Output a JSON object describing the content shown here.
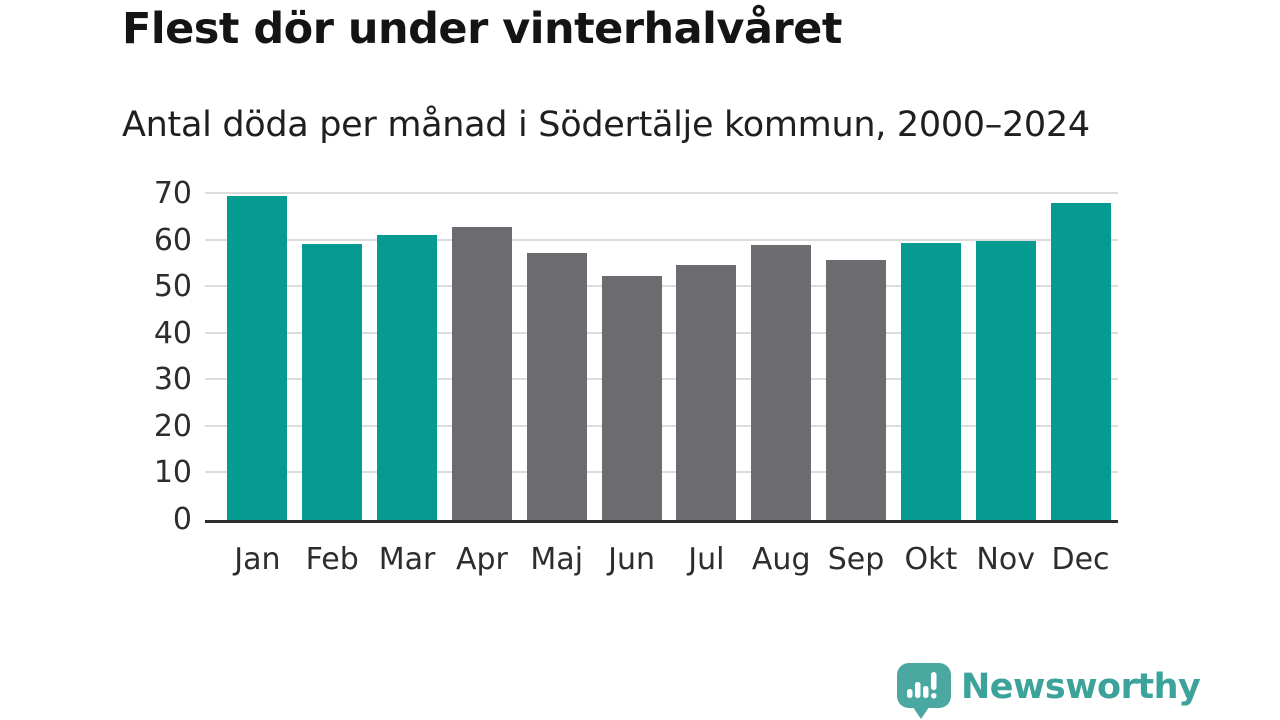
{
  "header": {
    "title": "Flest dör under vinterhalvåret",
    "subtitle": "Antal döda per månad i Södertälje kommun, 2000–2024"
  },
  "chart_data": {
    "type": "bar",
    "title": "Flest dör under vinterhalvåret",
    "subtitle": "Antal döda per månad i Södertälje kommun, 2000–2024",
    "categories": [
      "Jan",
      "Feb",
      "Mar",
      "Apr",
      "Maj",
      "Jun",
      "Jul",
      "Aug",
      "Sep",
      "Okt",
      "Nov",
      "Dec"
    ],
    "values": [
      69.6,
      59.3,
      61.2,
      63.0,
      57.4,
      52.3,
      54.8,
      59.0,
      55.8,
      59.4,
      60.0,
      68.1
    ],
    "groups": [
      "winter",
      "winter",
      "winter",
      "summer",
      "summer",
      "summer",
      "summer",
      "summer",
      "summer",
      "winter",
      "winter",
      "winter"
    ],
    "colors": {
      "winter": "#069b91",
      "summer": "#6c6c70"
    },
    "xlabel": "",
    "ylabel": "",
    "ylim": [
      0,
      70
    ],
    "yticks": [
      0,
      10,
      20,
      30,
      40,
      50,
      60,
      70
    ],
    "grid": true,
    "gridline_color": "#dcdcdc",
    "axis_line_color": "#2e2e2e",
    "legend": "none",
    "bar_width_ratio": 0.8
  },
  "footer": {
    "brand": "Newsworthy",
    "brand_text_color": "#3ba39a",
    "brand_icon_color": "#4aa8a0",
    "brand_icon_glyph_color": "#ffffff"
  }
}
